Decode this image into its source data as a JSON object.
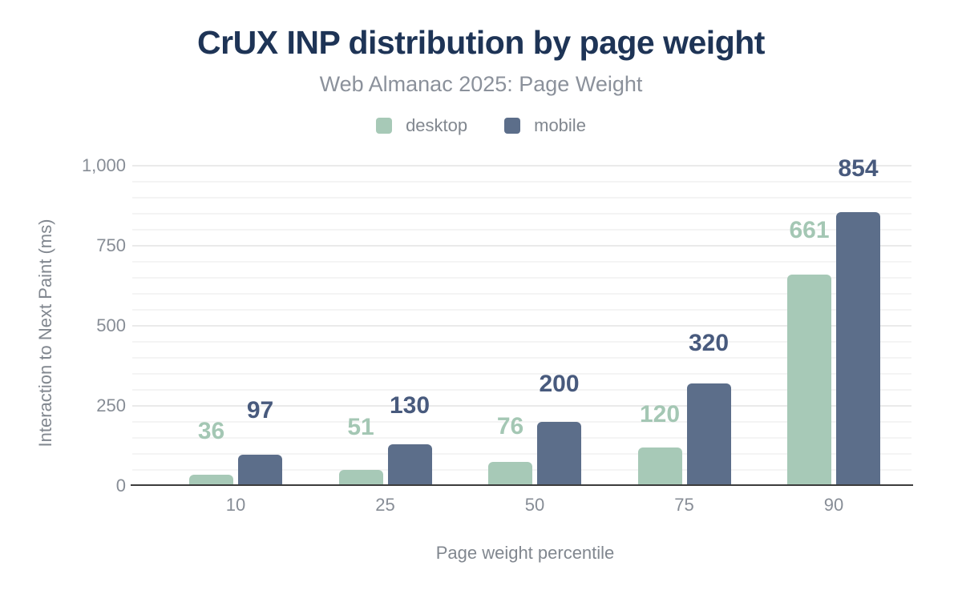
{
  "header": {
    "title": "CrUX INP distribution by page weight",
    "subtitle": "Web Almanac 2025: Page Weight"
  },
  "chart_data": {
    "type": "bar",
    "title": "CrUX INP distribution by page weight",
    "subtitle": "Web Almanac 2025: Page Weight",
    "categories": [
      "10",
      "25",
      "50",
      "75",
      "90"
    ],
    "series": [
      {
        "name": "desktop",
        "color": "#a7c9b7",
        "label_color": "#a4c7b4",
        "values": [
          36,
          51,
          76,
          120,
          661
        ]
      },
      {
        "name": "mobile",
        "color": "#5c6e8a",
        "label_color": "#485a7d",
        "values": [
          97,
          130,
          200,
          320,
          854
        ]
      }
    ],
    "xlabel": "Page weight percentile",
    "ylabel": "Interaction to Next Paint (ms)",
    "ylim": [
      0,
      1000
    ],
    "yticks": [
      0,
      250,
      500,
      750,
      1000
    ],
    "ytick_labels": [
      "0",
      "250",
      "500",
      "750",
      "1,000"
    ],
    "grid": "horizontal minor every 50ms, major every 250ms",
    "legend_position": "top",
    "data_labels": "above bars, colored per series"
  },
  "colors": {
    "background": "#ffffff",
    "title": "#1e3456",
    "subtitle": "#8b919b",
    "axis_text": "#878d96",
    "axis_line": "#3c3c3c",
    "gridline_minor": "#f4f4f4",
    "gridline_major": "#eaeaea",
    "desktop": "#a7c9b7",
    "mobile": "#5c6e8a"
  }
}
